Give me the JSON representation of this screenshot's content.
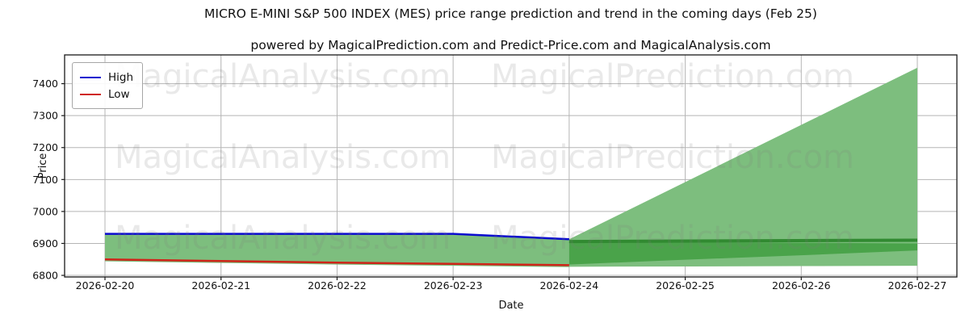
{
  "title": "MICRO E-MINI S&P 500 INDEX (MES) price range prediction and trend in the coming days (Feb 25)",
  "subtitle": "powered by MagicalPrediction.com and Predict-Price.com and MagicalAnalysis.com",
  "legend": {
    "position": "upper left",
    "items": [
      {
        "label": "High",
        "color": "#0b0bcf"
      },
      {
        "label": "Low",
        "color": "#cf2419"
      }
    ]
  },
  "watermarks": {
    "texts": [
      "MagicalAnalysis.com",
      "MagicalPrediction.com"
    ],
    "color": "rgba(125,125,125,0.17)"
  },
  "chart_data": {
    "type": "line",
    "title": "MICRO E-MINI S&P 500 INDEX (MES) price range prediction and trend in the coming days (Feb 25)",
    "xlabel": "Date",
    "ylabel": "Price",
    "x_labels": [
      "2026-02-20",
      "2026-02-21",
      "2026-02-22",
      "2026-02-23",
      "2026-02-24",
      "2026-02-25",
      "2026-02-26",
      "2026-02-27"
    ],
    "yticks": [
      6800,
      6900,
      7000,
      7100,
      7200,
      7300,
      7400
    ],
    "ylim": [
      6795,
      7490
    ],
    "grid": true,
    "grid_color": "#b5b5b5",
    "spine_color": "#1a1a1a",
    "series": [
      {
        "name": "High",
        "color": "#0b0bcf",
        "width": 2.5,
        "x": [
          0,
          1,
          2,
          3,
          4
        ],
        "values": [
          6930,
          6930,
          6930,
          6930,
          6913
        ]
      },
      {
        "name": "Low",
        "color": "#cf2419",
        "width": 2.5,
        "x": [
          0,
          1,
          2,
          3,
          4
        ],
        "values": [
          6850,
          6845,
          6840,
          6836,
          6832
        ]
      }
    ],
    "bands": [
      {
        "name": "historical-range",
        "color": "#7dbe7e",
        "x": [
          0,
          1,
          2,
          3,
          4
        ],
        "upper": [
          6930,
          6930,
          6930,
          6930,
          6913
        ],
        "lower": [
          6844,
          6839,
          6834,
          6830,
          6826
        ]
      },
      {
        "name": "prediction-fan",
        "color": "#7dbe7e",
        "x": [
          4,
          5,
          6,
          7
        ],
        "upper": [
          6913,
          7092,
          7271,
          7450
        ],
        "lower": [
          6827,
          6828,
          6829,
          6830
        ]
      },
      {
        "name": "prediction-core",
        "color": "#4aa34a",
        "x": [
          4,
          5,
          6,
          7
        ],
        "upper": [
          6906,
          6904,
          6902,
          6900
        ],
        "lower": [
          6834,
          6849,
          6863,
          6878
        ]
      }
    ],
    "trend_line": {
      "name": "trend",
      "color": "#318a31",
      "width": 4,
      "x": [
        4,
        7
      ],
      "values": [
        6906,
        6910
      ]
    }
  }
}
